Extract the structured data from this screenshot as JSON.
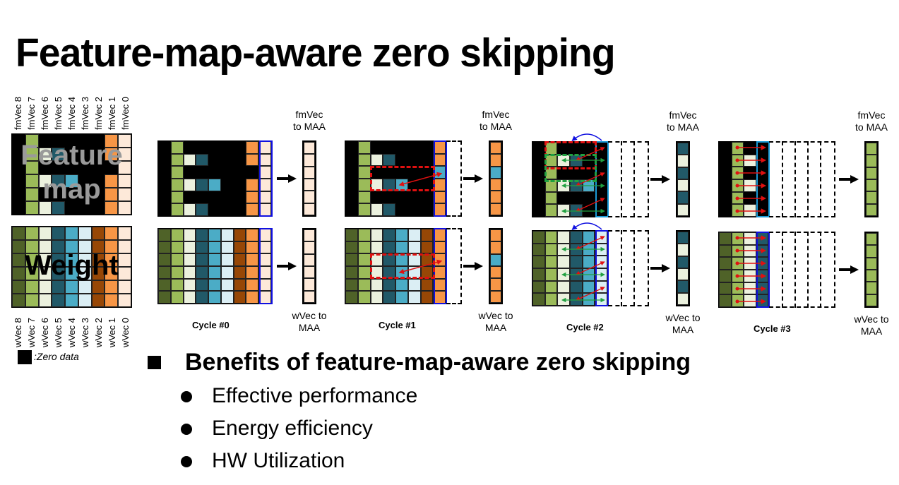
{
  "title": "Feature-map-aware zero skipping",
  "colors": {
    "zero": "#000000",
    "darkgreen": "#4f6228",
    "green": "#9bbb59",
    "lightgreen": "#ebf1de",
    "darkteal": "#215968",
    "teal": "#4bacc6",
    "lightblue": "#dbeef4",
    "brown": "#974706",
    "orange": "#f79646",
    "peach": "#fde9d9",
    "select_blue": "#1010e0",
    "select_cyan": "#1a9ad6",
    "arrow_red": "#e01010",
    "arrow_green": "#20a040"
  },
  "source": {
    "feature_map_label": "Feature map",
    "weight_label": "Weight",
    "fm_vec_labels": [
      "fmVec 8",
      "fmVec 7",
      "fmVec 6",
      "fmVec 5",
      "fmVec 4",
      "fmVec 3",
      "fmVec 2",
      "fmVec 1",
      "fmVec 0"
    ],
    "w_vec_labels": [
      "wVec 8",
      "wVec 7",
      "wVec 6",
      "wVec 5",
      "wVec 4",
      "wVec 3",
      "wVec 2",
      "wVec 1",
      "wVec 0"
    ],
    "legend_label": ":Zero data"
  },
  "feature_map_grid": [
    [
      "zero",
      "green",
      "zero",
      "zero",
      "zero",
      "zero",
      "zero",
      "orange",
      "peach"
    ],
    [
      "zero",
      "green",
      "lightgreen",
      "darkteal",
      "zero",
      "zero",
      "zero",
      "orange",
      "peach"
    ],
    [
      "zero",
      "green",
      "zero",
      "zero",
      "zero",
      "zero",
      "zero",
      "zero",
      "peach"
    ],
    [
      "zero",
      "green",
      "lightgreen",
      "darkteal",
      "teal",
      "zero",
      "zero",
      "orange",
      "peach"
    ],
    [
      "zero",
      "green",
      "zero",
      "zero",
      "zero",
      "zero",
      "zero",
      "orange",
      "peach"
    ],
    [
      "zero",
      "green",
      "lightgreen",
      "darkteal",
      "zero",
      "zero",
      "zero",
      "orange",
      "peach"
    ]
  ],
  "weight_columns": [
    "darkgreen",
    "green",
    "lightgreen",
    "darkteal",
    "teal",
    "lightblue",
    "brown",
    "orange",
    "peach"
  ],
  "cycles": [
    {
      "label": "Cycle #0",
      "fm_caption_1": "fmVec",
      "fm_caption_2": "to MAA",
      "w_caption_1": "wVec to",
      "w_caption_2": "MAA",
      "fm_columns": 9,
      "w_columns": 9,
      "fm_output": [
        "peach",
        "peach",
        "peach",
        "peach",
        "peach",
        "peach"
      ],
      "w_output": [
        "peach",
        "peach",
        "peach",
        "peach",
        "peach",
        "peach"
      ]
    },
    {
      "label": "Cycle #1",
      "fm_caption_1": "fmVec",
      "fm_caption_2": "to MAA",
      "w_caption_1": "wVec to",
      "w_caption_2": "MAA",
      "fm_columns": 8,
      "w_columns": 8,
      "fm_output": [
        "orange",
        "orange",
        "teal",
        "orange",
        "orange",
        "orange"
      ],
      "w_output": [
        "orange",
        "orange",
        "teal",
        "orange",
        "orange",
        "orange"
      ]
    },
    {
      "label": "Cycle #2",
      "fm_caption_1": "fmVec",
      "fm_caption_2": "to MAA",
      "w_caption_1": "wVec to",
      "w_caption_2": "MAA",
      "fm_columns": 6,
      "w_columns": 6,
      "fm_output": [
        "darkteal",
        "lightgreen",
        "darkteal",
        "lightgreen",
        "darkteal",
        "lightgreen"
      ],
      "w_output": [
        "darkteal",
        "lightgreen",
        "darkteal",
        "lightgreen",
        "darkteal",
        "lightgreen"
      ]
    },
    {
      "label": "Cycle #3",
      "fm_caption_1": "fmVec",
      "fm_caption_2": "to MAA",
      "w_caption_1": "wVec to",
      "w_caption_2": "MAA",
      "fm_columns": 4,
      "w_columns": 4,
      "fm_output": [
        "green",
        "green",
        "green",
        "green",
        "green",
        "green"
      ],
      "w_output": [
        "green",
        "green",
        "green",
        "green",
        "green",
        "green"
      ]
    }
  ],
  "benefits": {
    "heading": "Benefits of feature-map-aware zero skipping",
    "items": [
      "Effective performance",
      "Energy efficiency",
      "HW Utilization"
    ]
  }
}
